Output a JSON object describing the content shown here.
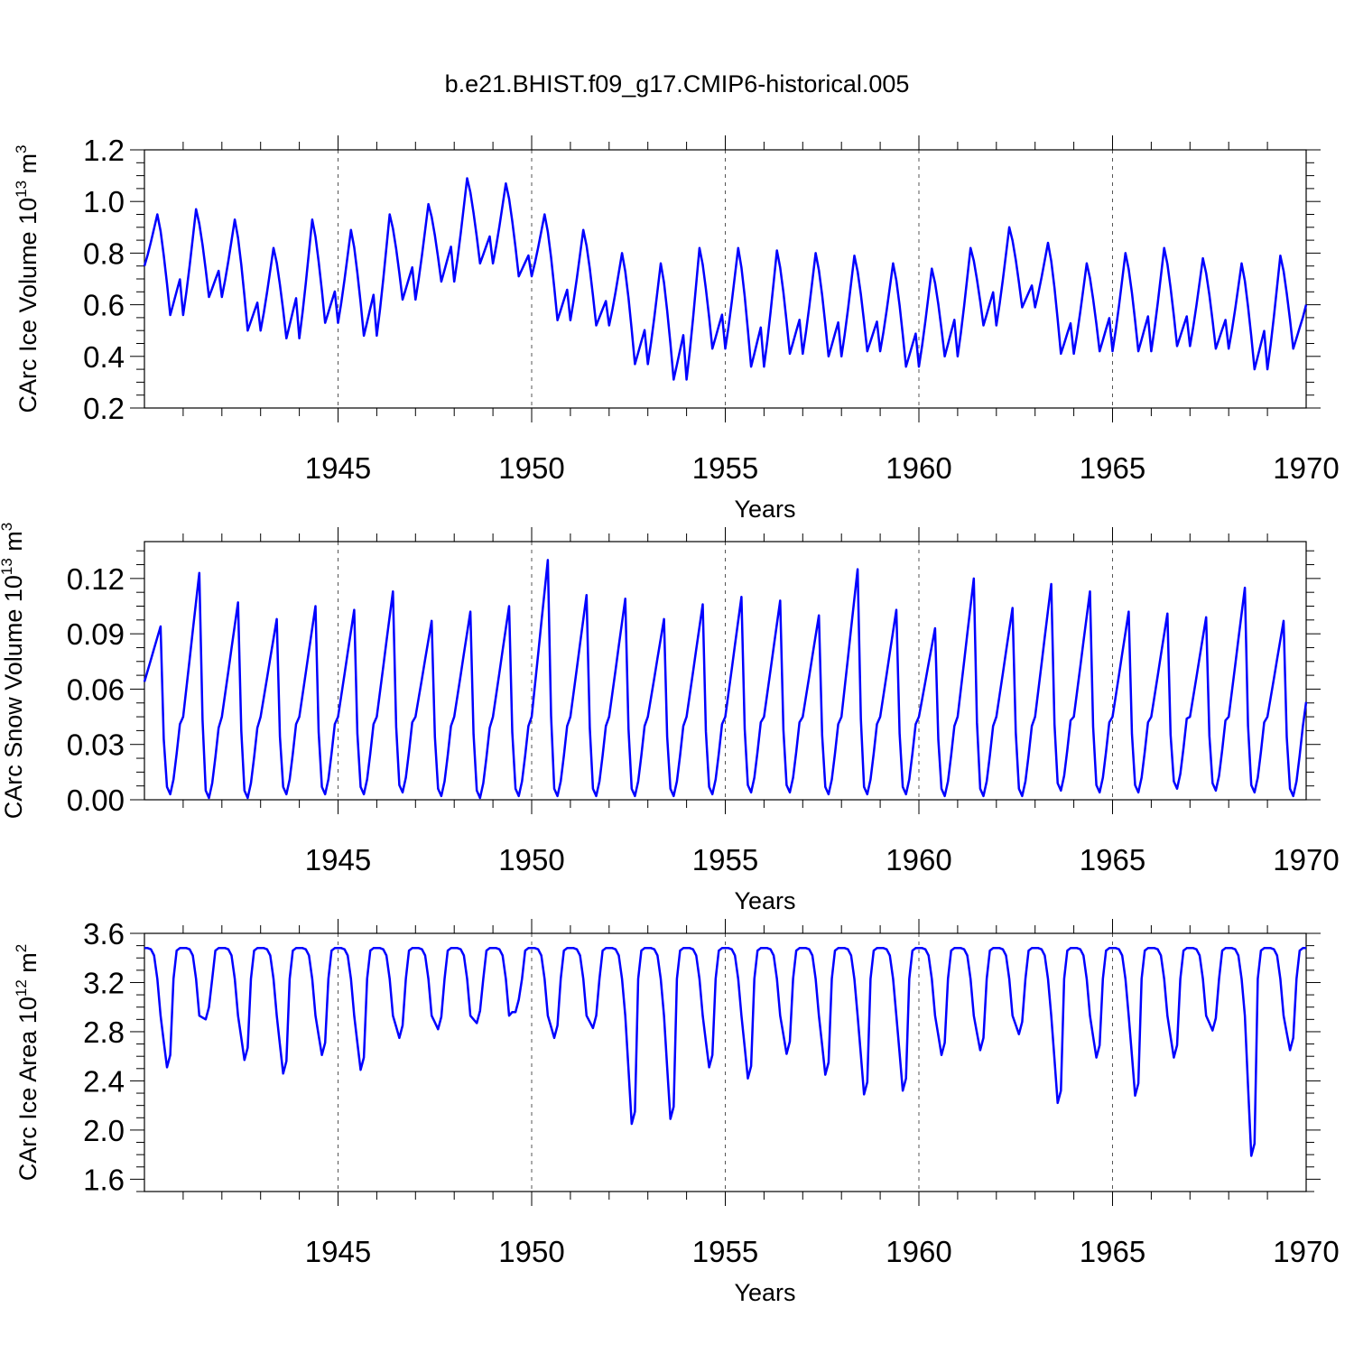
{
  "title": "b.e21.BHIST.f09_g17.CMIP6-historical.005",
  "colors": {
    "series": "#0000ff",
    "axis": "#000000",
    "grid": "#555555"
  },
  "chart_data": [
    {
      "type": "line",
      "name": "ice-volume",
      "ylabel_main": "CArc Ice Volume 10",
      "ylabel_exp": "13",
      "ylabel_unit": " m",
      "ylabel_unit_exp": "3",
      "xlabel": "Years",
      "xlim": [
        1940,
        1970
      ],
      "ylim": [
        0.2,
        1.2
      ],
      "yticks": [
        0.2,
        0.4,
        0.6,
        0.8,
        1.0,
        1.2
      ],
      "ytick_labels": [
        "0.2",
        "0.4",
        "0.6",
        "0.8",
        "1.0",
        "1.2"
      ],
      "xticks": [
        1945,
        1950,
        1955,
        1960,
        1965,
        1970
      ],
      "xtick_labels": [
        "1945",
        "1950",
        "1955",
        "1960",
        "1965",
        "1970"
      ],
      "grid_x": true,
      "series": [
        {
          "name": "CArc Ice Volume",
          "max": [
            0.95,
            0.97,
            0.93,
            0.82,
            0.93,
            0.89,
            0.95,
            0.99,
            1.09,
            1.07,
            0.95,
            0.89,
            0.8,
            0.76,
            0.82,
            0.82,
            0.81,
            0.8,
            0.79,
            0.76,
            0.74,
            0.82,
            0.9,
            0.84,
            0.76,
            0.8,
            0.82,
            0.78,
            0.76,
            0.79
          ],
          "min": [
            0.56,
            0.63,
            0.5,
            0.47,
            0.53,
            0.48,
            0.62,
            0.69,
            0.76,
            0.71,
            0.54,
            0.52,
            0.37,
            0.31,
            0.43,
            0.36,
            0.41,
            0.4,
            0.42,
            0.36,
            0.4,
            0.52,
            0.59,
            0.41,
            0.42,
            0.42,
            0.44,
            0.43,
            0.35,
            0.43
          ],
          "start": 0.75,
          "end": 0.6
        }
      ]
    },
    {
      "type": "line",
      "name": "snow-volume",
      "ylabel_main": "CArc Snow Volume 10",
      "ylabel_exp": "13",
      "ylabel_unit": " m",
      "ylabel_unit_exp": "3",
      "xlabel": "Years",
      "xlim": [
        1940,
        1970
      ],
      "ylim": [
        0.0,
        0.14
      ],
      "yticks": [
        0.0,
        0.03,
        0.06,
        0.09,
        0.12
      ],
      "ytick_labels": [
        "0.00",
        "0.03",
        "0.06",
        "0.09",
        "0.12"
      ],
      "xticks": [
        1945,
        1950,
        1955,
        1960,
        1965,
        1970
      ],
      "xtick_labels": [
        "1945",
        "1950",
        "1955",
        "1960",
        "1965",
        "1970"
      ],
      "grid_x": true,
      "series": [
        {
          "name": "CArc Snow Volume",
          "max": [
            0.094,
            0.123,
            0.107,
            0.098,
            0.105,
            0.103,
            0.113,
            0.097,
            0.102,
            0.105,
            0.13,
            0.111,
            0.109,
            0.098,
            0.106,
            0.11,
            0.108,
            0.1,
            0.125,
            0.103,
            0.093,
            0.12,
            0.104,
            0.117,
            0.113,
            0.102,
            0.101,
            0.099,
            0.115,
            0.097
          ],
          "min": [
            0.003,
            0.001,
            0.001,
            0.003,
            0.003,
            0.003,
            0.004,
            0.002,
            0.001,
            0.002,
            0.002,
            0.002,
            0.002,
            0.002,
            0.003,
            0.004,
            0.004,
            0.003,
            0.003,
            0.003,
            0.002,
            0.002,
            0.002,
            0.005,
            0.004,
            0.004,
            0.006,
            0.005,
            0.004,
            0.002
          ],
          "start": 0.064,
          "end": 0.053
        }
      ]
    },
    {
      "type": "line",
      "name": "ice-area",
      "ylabel_main": "CArc Ice Area 10",
      "ylabel_exp": "12",
      "ylabel_unit": " m",
      "ylabel_unit_exp": "2",
      "xlabel": "Years",
      "xlim": [
        1940,
        1970
      ],
      "ylim": [
        1.5,
        3.6
      ],
      "yticks": [
        1.6,
        2.0,
        2.4,
        2.8,
        3.2,
        3.6
      ],
      "ytick_labels": [
        "1.6",
        "2.0",
        "2.4",
        "2.8",
        "3.2",
        "3.6"
      ],
      "xticks": [
        1945,
        1950,
        1955,
        1960,
        1965,
        1970
      ],
      "xtick_labels": [
        "1945",
        "1950",
        "1955",
        "1960",
        "1965",
        "1970"
      ],
      "grid_x": true,
      "series": [
        {
          "name": "CArc Ice Area",
          "max": 3.48,
          "min": [
            2.51,
            2.9,
            2.57,
            2.46,
            2.61,
            2.49,
            2.75,
            2.82,
            2.87,
            2.96,
            2.75,
            2.83,
            2.05,
            2.09,
            2.51,
            2.42,
            2.62,
            2.45,
            2.29,
            2.32,
            2.61,
            2.65,
            2.78,
            2.22,
            2.59,
            2.28,
            2.59,
            2.81,
            1.79,
            2.65
          ],
          "start": 3.48,
          "end": 3.48
        }
      ]
    }
  ]
}
